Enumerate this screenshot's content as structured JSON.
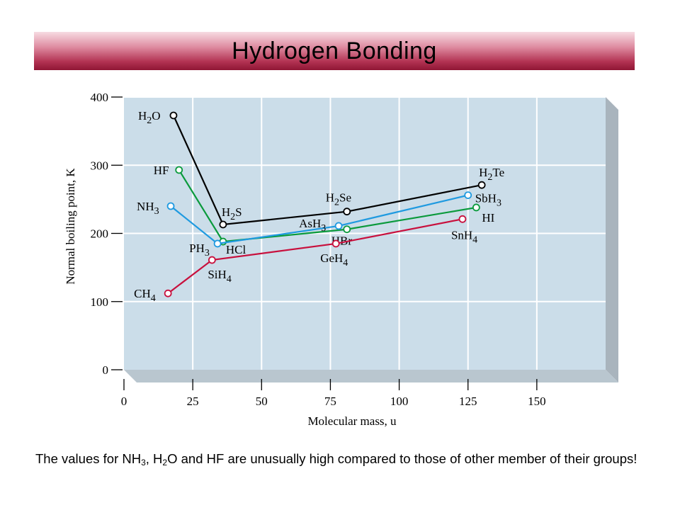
{
  "title": "Hydrogen Bonding",
  "caption": {
    "parts": [
      "The values for NH",
      "3",
      ", H",
      "2",
      "O and HF are unusually high compared to those of other member of their groups!"
    ]
  },
  "colors": {
    "plot_background": "#cbdde9",
    "panel_side": "#a9b4bd",
    "grid": "#ffffff",
    "group16": "#000000",
    "group17": "#0a9a3c",
    "group15": "#1f9ae0",
    "group14": "#c8103d",
    "marker_fill": "#ffffff"
  },
  "chart_data": {
    "type": "line",
    "xlabel": "Molecular mass, u",
    "ylabel": "Normal boiling point, K",
    "xlim": [
      0,
      175
    ],
    "ylim": [
      0,
      400
    ],
    "x_ticks": [
      "0",
      "25",
      "50",
      "75",
      "100",
      "125",
      "150"
    ],
    "y_ticks": [
      "0",
      "100",
      "200",
      "300",
      "400"
    ],
    "grid": true,
    "series": [
      {
        "color_key": "group16",
        "points": [
          {
            "label": "H2O",
            "x": 18,
            "y": 373
          },
          {
            "label": "H2S",
            "x": 36,
            "y": 213
          },
          {
            "label": "H2Se",
            "x": 81,
            "y": 232
          },
          {
            "label": "H2Te",
            "x": 130,
            "y": 271
          }
        ]
      },
      {
        "color_key": "group17",
        "points": [
          {
            "label": "HF",
            "x": 20,
            "y": 293
          },
          {
            "label": "HCl",
            "x": 36,
            "y": 188
          },
          {
            "label": "HBr",
            "x": 81,
            "y": 206
          },
          {
            "label": "HI",
            "x": 128,
            "y": 238
          }
        ]
      },
      {
        "color_key": "group15",
        "points": [
          {
            "label": "NH3",
            "x": 17,
            "y": 240
          },
          {
            "label": "PH3",
            "x": 34,
            "y": 185
          },
          {
            "label": "AsH3",
            "x": 78,
            "y": 211
          },
          {
            "label": "SbH3",
            "x": 125,
            "y": 256
          }
        ]
      },
      {
        "color_key": "group14",
        "points": [
          {
            "label": "CH4",
            "x": 16,
            "y": 112
          },
          {
            "label": "SiH4",
            "x": 32,
            "y": 161
          },
          {
            "label": "GeH4",
            "x": 77,
            "y": 185
          },
          {
            "label": "SnH4",
            "x": 123,
            "y": 221
          }
        ]
      }
    ]
  }
}
